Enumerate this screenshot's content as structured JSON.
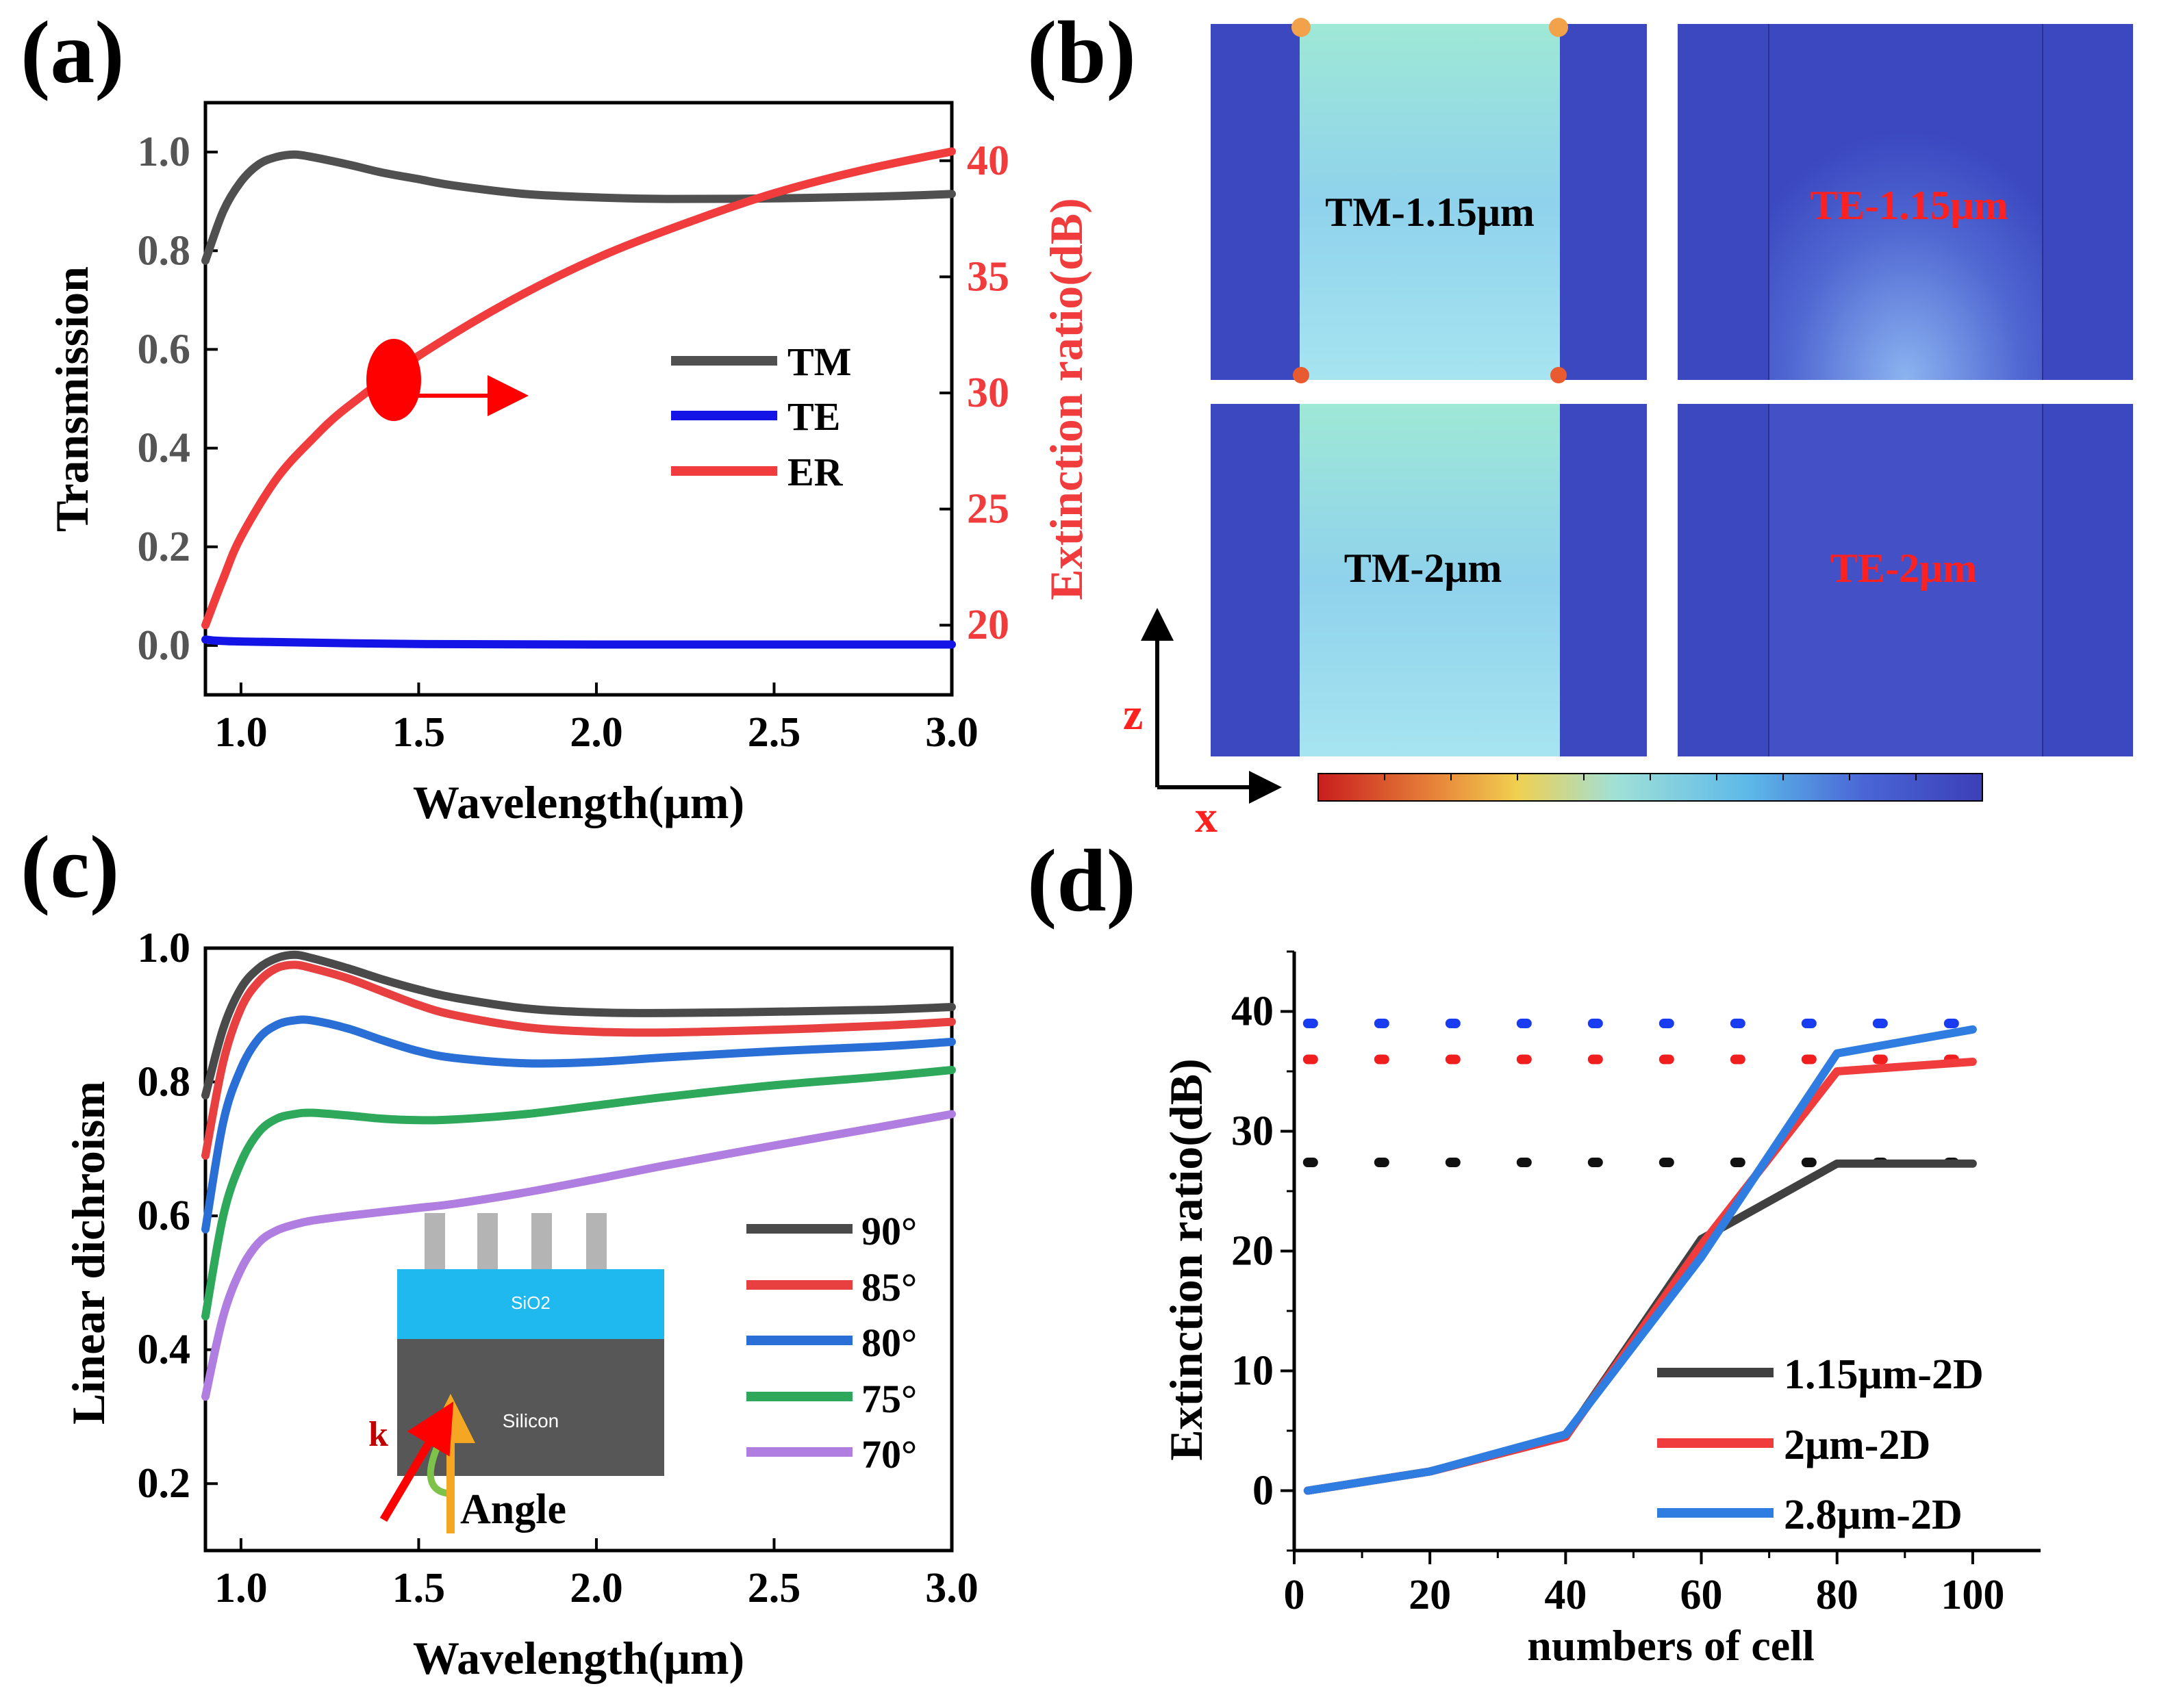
{
  "panels": {
    "a": {
      "label": "(a)"
    },
    "b": {
      "label": "(b)"
    },
    "c": {
      "label": "(c)"
    },
    "d": {
      "label": "(d)"
    }
  },
  "colors": {
    "tm": "#505050",
    "te": "#1414e6",
    "er": "#f03c3c",
    "c90": "#4a4a4a",
    "c85": "#e84040",
    "c80": "#2a6fd6",
    "c75": "#2ea85a",
    "c70": "#b07ee0",
    "d115": "#404040",
    "d2": "#f03c3c",
    "d28": "#2f7de0",
    "dot_blue": "#1a3cf0",
    "dot_red": "#f01e1e",
    "dot_black": "#111111",
    "field_bg": "#3b48c0",
    "arrow_red": "#ff0000",
    "arrow_orange": "#f5a623",
    "sio2": "#1fb8ef",
    "silicon": "#575757",
    "pillar": "#b4b4b4",
    "curl": "#7fc24a"
  },
  "chart_data": [
    {
      "panel": "a",
      "type": "line",
      "xlabel": "Wavelength(μm)",
      "ylabel": "Transmission",
      "y2label": "Extinction ratio(dB)",
      "xlim": [
        0.9,
        3.0
      ],
      "ylim": [
        -0.1,
        1.1
      ],
      "y2lim": [
        17.0,
        42.5
      ],
      "xticks": [
        "1.0",
        "1.5",
        "2.0",
        "2.5",
        "3.0"
      ],
      "yticks": [
        "0.0",
        "0.2",
        "0.4",
        "0.6",
        "0.8",
        "1.0"
      ],
      "y2ticks": [
        "20",
        "25",
        "30",
        "35",
        "40"
      ],
      "series": [
        {
          "name": "TM",
          "axis": "left",
          "x": [
            0.9,
            0.95,
            1.0,
            1.05,
            1.1,
            1.15,
            1.2,
            1.3,
            1.4,
            1.5,
            1.6,
            1.8,
            2.0,
            2.2,
            2.5,
            2.8,
            3.0
          ],
          "y": [
            0.78,
            0.88,
            0.94,
            0.975,
            0.99,
            0.995,
            0.99,
            0.975,
            0.958,
            0.945,
            0.932,
            0.915,
            0.908,
            0.905,
            0.906,
            0.91,
            0.915
          ]
        },
        {
          "name": "TE",
          "axis": "left",
          "x": [
            0.9,
            1.0,
            1.5,
            2.0,
            2.5,
            3.0
          ],
          "y": [
            0.012,
            0.008,
            0.003,
            0.002,
            0.002,
            0.002
          ]
        },
        {
          "name": "ER",
          "axis": "right",
          "x": [
            0.9,
            0.95,
            1.0,
            1.1,
            1.2,
            1.3,
            1.5,
            1.75,
            2.0,
            2.25,
            2.5,
            2.75,
            3.0
          ],
          "y": [
            20.0,
            22.0,
            23.8,
            26.3,
            28.0,
            29.4,
            31.6,
            33.9,
            35.8,
            37.3,
            38.6,
            39.6,
            40.4
          ]
        }
      ],
      "legend": [
        "TM",
        "TE",
        "ER"
      ]
    },
    {
      "panel": "b",
      "type": "heatmap",
      "labels": [
        "TM-1.15μm",
        "TE-1.15μm",
        "TM-2μm",
        "TE-2μm"
      ],
      "axis_z": "z",
      "axis_x": "x"
    },
    {
      "panel": "c",
      "type": "line",
      "xlabel": "Wavelength(μm)",
      "ylabel": "Linear dichroism",
      "xlim": [
        0.9,
        3.0
      ],
      "ylim": [
        0.1,
        1.0
      ],
      "xticks": [
        "1.0",
        "1.5",
        "2.0",
        "2.5",
        "3.0"
      ],
      "yticks": [
        "0.2",
        "0.4",
        "0.6",
        "0.8",
        "1.0"
      ],
      "series": [
        {
          "name": "90°",
          "x": [
            0.9,
            0.95,
            1.0,
            1.05,
            1.1,
            1.15,
            1.2,
            1.3,
            1.4,
            1.5,
            1.6,
            1.8,
            2.0,
            2.2,
            2.5,
            2.8,
            3.0
          ],
          "y": [
            0.78,
            0.88,
            0.94,
            0.97,
            0.985,
            0.99,
            0.985,
            0.97,
            0.953,
            0.938,
            0.926,
            0.91,
            0.904,
            0.903,
            0.905,
            0.908,
            0.912
          ]
        },
        {
          "name": "85°",
          "x": [
            0.9,
            0.95,
            1.0,
            1.05,
            1.1,
            1.15,
            1.2,
            1.3,
            1.4,
            1.5,
            1.6,
            1.8,
            2.0,
            2.2,
            2.5,
            2.8,
            3.0
          ],
          "y": [
            0.69,
            0.83,
            0.91,
            0.95,
            0.97,
            0.975,
            0.97,
            0.955,
            0.935,
            0.915,
            0.9,
            0.882,
            0.875,
            0.874,
            0.878,
            0.884,
            0.89
          ]
        },
        {
          "name": "80°",
          "x": [
            0.9,
            0.95,
            1.0,
            1.05,
            1.1,
            1.15,
            1.2,
            1.3,
            1.4,
            1.5,
            1.6,
            1.8,
            2.0,
            2.2,
            2.5,
            2.8,
            3.0
          ],
          "y": [
            0.58,
            0.74,
            0.82,
            0.865,
            0.885,
            0.892,
            0.892,
            0.88,
            0.862,
            0.846,
            0.836,
            0.828,
            0.83,
            0.837,
            0.846,
            0.853,
            0.86
          ]
        },
        {
          "name": "75°",
          "x": [
            0.9,
            0.95,
            1.0,
            1.05,
            1.1,
            1.15,
            1.2,
            1.3,
            1.4,
            1.5,
            1.6,
            1.8,
            2.0,
            2.2,
            2.5,
            2.8,
            3.0
          ],
          "y": [
            0.45,
            0.6,
            0.68,
            0.725,
            0.745,
            0.752,
            0.754,
            0.75,
            0.745,
            0.743,
            0.744,
            0.752,
            0.765,
            0.778,
            0.795,
            0.808,
            0.818
          ]
        },
        {
          "name": "70°",
          "x": [
            0.9,
            0.95,
            1.0,
            1.05,
            1.1,
            1.15,
            1.2,
            1.3,
            1.4,
            1.5,
            1.6,
            1.8,
            2.0,
            2.2,
            2.5,
            2.8,
            3.0
          ],
          "y": [
            0.33,
            0.45,
            0.52,
            0.56,
            0.578,
            0.587,
            0.593,
            0.6,
            0.606,
            0.612,
            0.618,
            0.635,
            0.655,
            0.676,
            0.705,
            0.733,
            0.752
          ]
        }
      ],
      "legend": [
        "90°",
        "85°",
        "80°",
        "75°",
        "70°"
      ],
      "inset": {
        "sio2": "SiO2",
        "silicon": "Silicon",
        "k": "k",
        "angle": "Angle"
      }
    },
    {
      "panel": "d",
      "type": "line",
      "xlabel": "numbers of cell",
      "ylabel": "Extinction ratio(dB)",
      "xlim": [
        0,
        110
      ],
      "ylim": [
        -5,
        45
      ],
      "xticks": [
        "0",
        "20",
        "40",
        "60",
        "80",
        "100"
      ],
      "yticks": [
        "0",
        "10",
        "20",
        "30",
        "40"
      ],
      "series": [
        {
          "name": "1.15μm-2D",
          "x": [
            2,
            20,
            40,
            60,
            80,
            100
          ],
          "y": [
            0,
            1.6,
            4.5,
            21,
            27.3,
            27.3
          ]
        },
        {
          "name": "2μm-2D",
          "x": [
            2,
            20,
            40,
            60,
            80,
            100
          ],
          "y": [
            0,
            1.6,
            4.5,
            20.5,
            35,
            35.8
          ]
        },
        {
          "name": "2.8μm-2D",
          "x": [
            2,
            20,
            40,
            60,
            80,
            100
          ],
          "y": [
            0,
            1.6,
            4.7,
            19.5,
            36.5,
            38.5
          ]
        }
      ],
      "reference_lines": [
        {
          "color": "blue",
          "y": 39
        },
        {
          "color": "red",
          "y": 36
        },
        {
          "color": "black",
          "y": 27.4
        }
      ],
      "legend": [
        "1.15μm-2D",
        "2μm-2D",
        "2.8μm-2D"
      ]
    }
  ]
}
